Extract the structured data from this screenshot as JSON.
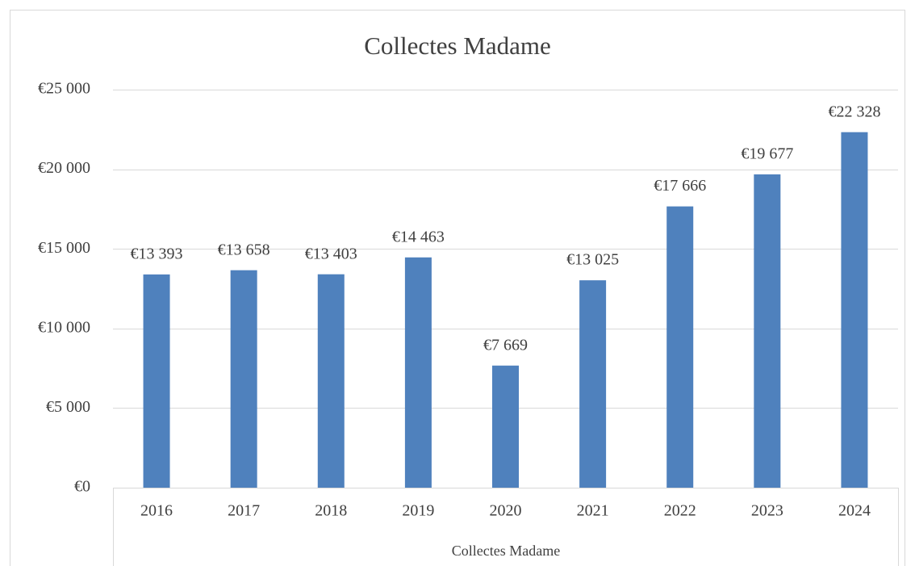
{
  "chart_data": {
    "type": "bar",
    "title": "Collectes Madame",
    "x_label": "Collectes Madame",
    "categories": [
      "2016",
      "2017",
      "2018",
      "2019",
      "2020",
      "2021",
      "2022",
      "2023",
      "2024"
    ],
    "values": [
      13393,
      13658,
      13403,
      14463,
      7669,
      13025,
      17666,
      19677,
      22328
    ],
    "value_labels": [
      "€13 393",
      "€13 658",
      "€13 403",
      "€14 463",
      "€7 669",
      "€13 025",
      "€17 666",
      "€19 677",
      "€22 328"
    ],
    "color": "#4f81bd",
    "ylim": [
      0,
      25000
    ],
    "yticks": [
      {
        "value": 0,
        "label": "€0"
      },
      {
        "value": 5000,
        "label": "€5 000"
      },
      {
        "value": 10000,
        "label": "€10 000"
      },
      {
        "value": 15000,
        "label": "€15 000"
      },
      {
        "value": 20000,
        "label": "€20 000"
      },
      {
        "value": 25000,
        "label": "€25 000"
      }
    ],
    "grid": true
  }
}
